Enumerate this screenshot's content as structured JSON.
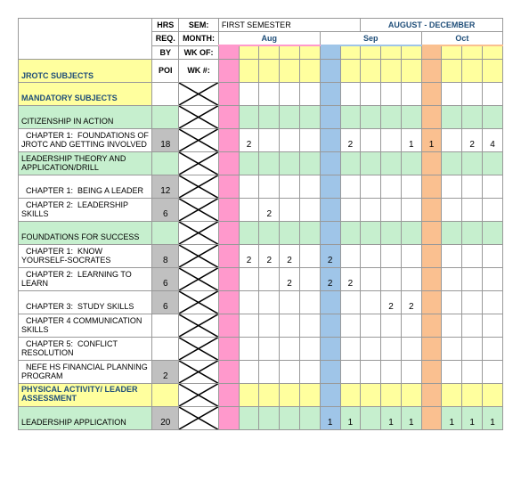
{
  "colors": {
    "yellow": "#ffff9e",
    "green": "#c6efce",
    "gray": "#c0c0c0",
    "pink": "#ff99cc",
    "blue": "#9fc5e8",
    "orange": "#fac090",
    "blue_text": "#1f4e79",
    "border": "#999999",
    "white": "#ffffff"
  },
  "header": {
    "hrs": "HRS",
    "req": "REQ.",
    "by": "BY",
    "poi": "POI",
    "sem": "SEM:",
    "month": "MONTH:",
    "wkof": "WK OF:",
    "wknum": "WK #:",
    "first_semester": "FIRST SEMESTER",
    "date_range": "AUGUST - DECEMBER",
    "months": [
      "Aug",
      "Sep",
      "Oct"
    ]
  },
  "section_jrotc": "JROTC SUBJECTS",
  "section_mandatory": "MANDATORY SUBJECTS",
  "section_physical": "PHYSICAL ACTIVITY/ LEADER ASSESSMENT",
  "rows": [
    {
      "label": "CITIZENSHIP IN ACTION",
      "hrs": "",
      "bg": "green",
      "cross": true,
      "cells": [
        "",
        "",
        "",
        "",
        "",
        "",
        "",
        "",
        "",
        "",
        "",
        "",
        "",
        ""
      ]
    },
    {
      "label": "  CHAPTER 1:  FOUNDATIONS OF JROTC AND GETTING INVOLVED",
      "hrs": "18",
      "bg": "white",
      "hrs_bg": "gray",
      "cross": true,
      "cells": [
        "",
        "2",
        "",
        "",
        "",
        "",
        "2",
        "",
        "",
        "1",
        "1",
        "",
        "2",
        "4"
      ]
    },
    {
      "label": "LEADERSHIP THEORY AND APPLICATION/DRILL",
      "hrs": "",
      "bg": "green",
      "cross": true,
      "cells": [
        "",
        "",
        "",
        "",
        "",
        "",
        "",
        "",
        "",
        "",
        "",
        "",
        "",
        ""
      ]
    },
    {
      "label": "  CHAPTER 1:  BEING A LEADER",
      "hrs": "12",
      "bg": "white",
      "hrs_bg": "gray",
      "cross": true,
      "cells": [
        "",
        "",
        "",
        "",
        "",
        "",
        "",
        "",
        "",
        "",
        "",
        "",
        "",
        ""
      ]
    },
    {
      "label": "  CHAPTER 2:  LEADERSHIP SKILLS",
      "hrs": "6",
      "bg": "white",
      "hrs_bg": "gray",
      "cross": true,
      "cells": [
        "",
        "",
        "2",
        "",
        "",
        "",
        "",
        "",
        "",
        "",
        "",
        "",
        "",
        ""
      ]
    },
    {
      "label": "FOUNDATIONS FOR SUCCESS",
      "hrs": "",
      "bg": "green",
      "cross": true,
      "cells": [
        "",
        "",
        "",
        "",
        "",
        "",
        "",
        "",
        "",
        "",
        "",
        "",
        "",
        ""
      ]
    },
    {
      "label": "  CHAPTER 1:  KNOW YOURSELF-SOCRATES",
      "hrs": "8",
      "bg": "white",
      "hrs_bg": "gray",
      "cross": true,
      "cells": [
        "",
        "2",
        "2",
        "2",
        "",
        "2",
        "",
        "",
        "",
        "",
        "",
        "",
        "",
        ""
      ]
    },
    {
      "label": "  CHAPTER 2:  LEARNING TO LEARN",
      "hrs": "6",
      "bg": "white",
      "hrs_bg": "gray",
      "cross": true,
      "cells": [
        "",
        "",
        "",
        "2",
        "",
        "2",
        "2",
        "",
        "",
        "",
        "",
        "",
        "",
        ""
      ]
    },
    {
      "label": "  CHAPTER 3:  STUDY SKILLS",
      "hrs": "6",
      "bg": "white",
      "hrs_bg": "gray",
      "cross": true,
      "cells": [
        "",
        "",
        "",
        "",
        "",
        "",
        "",
        "",
        "2",
        "2",
        "",
        "",
        "",
        ""
      ]
    },
    {
      "label": "  CHAPTER 4 COMMUNICATION SKILLS",
      "hrs": "",
      "bg": "white",
      "cross": true,
      "cells": [
        "",
        "",
        "",
        "",
        "",
        "",
        "",
        "",
        "",
        "",
        "",
        "",
        "",
        ""
      ]
    },
    {
      "label": "  CHAPTER 5:  CONFLICT RESOLUTION",
      "hrs": "",
      "bg": "white",
      "cross": true,
      "cells": [
        "",
        "",
        "",
        "",
        "",
        "",
        "",
        "",
        "",
        "",
        "",
        "",
        "",
        ""
      ]
    },
    {
      "label": "  NEFE HS FINANCIAL PLANNING PROGRAM",
      "hrs": "2",
      "bg": "white",
      "hrs_bg": "gray",
      "cross": true,
      "cells": [
        "",
        "",
        "",
        "",
        "",
        "",
        "",
        "",
        "",
        "",
        "",
        "",
        "",
        ""
      ]
    },
    {
      "label": "LEADERSHIP APPLICATION",
      "hrs": "20",
      "bg": "green",
      "hrs_bg": "gray",
      "cross": true,
      "cells": [
        "",
        "",
        "",
        "",
        "",
        "1",
        "1",
        "",
        "1",
        "1",
        "",
        "1",
        "1",
        "1"
      ]
    }
  ],
  "month_spans": [
    {
      "color": "pink",
      "cols": 1
    },
    {
      "color": "white",
      "cols": 4
    },
    {
      "color": "blue",
      "cols": 1
    },
    {
      "color": "white",
      "cols": 4
    },
    {
      "color": "orange",
      "cols": 1
    },
    {
      "color": "white",
      "cols": 3
    }
  ]
}
